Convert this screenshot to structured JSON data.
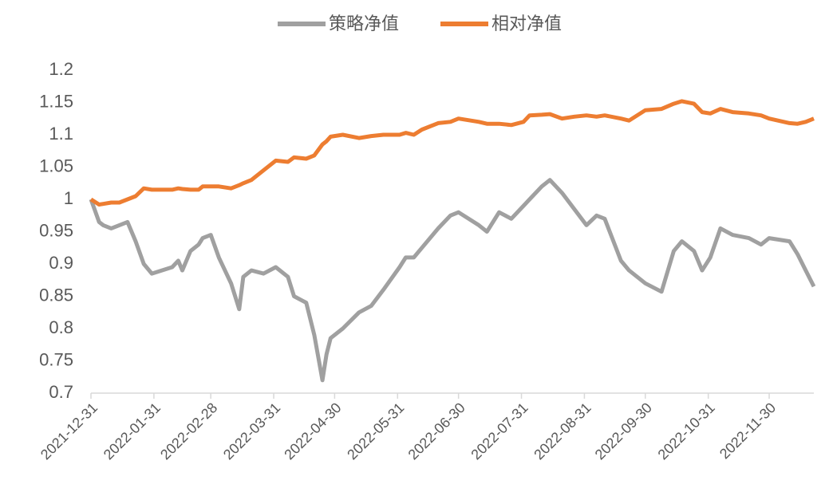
{
  "chart_data": {
    "type": "line",
    "x": [
      "2021-12-31",
      "2022-01-04",
      "2022-01-06",
      "2022-01-10",
      "2022-01-14",
      "2022-01-18",
      "2022-01-22",
      "2022-01-26",
      "2022-01-30",
      "2022-02-09",
      "2022-02-12",
      "2022-02-14",
      "2022-02-18",
      "2022-02-22",
      "2022-02-24",
      "2022-02-28",
      "2022-03-04",
      "2022-03-10",
      "2022-03-14",
      "2022-03-16",
      "2022-03-20",
      "2022-03-26",
      "2022-04-01",
      "2022-04-07",
      "2022-04-10",
      "2022-04-16",
      "2022-04-20",
      "2022-04-24",
      "2022-04-26",
      "2022-04-28",
      "2022-05-04",
      "2022-05-12",
      "2022-05-18",
      "2022-05-24",
      "2022-06-01",
      "2022-06-04",
      "2022-06-08",
      "2022-06-12",
      "2022-06-20",
      "2022-06-26",
      "2022-06-30",
      "2022-07-10",
      "2022-07-14",
      "2022-07-20",
      "2022-07-26",
      "2022-08-01",
      "2022-08-04",
      "2022-08-10",
      "2022-08-14",
      "2022-08-20",
      "2022-08-26",
      "2022-09-01",
      "2022-09-06",
      "2022-09-10",
      "2022-09-18",
      "2022-09-22",
      "2022-09-26",
      "2022-09-30",
      "2022-10-08",
      "2022-10-14",
      "2022-10-18",
      "2022-10-24",
      "2022-10-28",
      "2022-11-01",
      "2022-11-06",
      "2022-11-12",
      "2022-11-20",
      "2022-11-26",
      "2022-11-30",
      "2022-12-10",
      "2022-12-14",
      "2022-12-18",
      "2022-12-22"
    ],
    "series": [
      {
        "name": "策略净值",
        "color": "#a0a0a0",
        "values": [
          1.0,
          0.965,
          0.96,
          0.955,
          0.96,
          0.965,
          0.935,
          0.9,
          0.885,
          0.895,
          0.905,
          0.89,
          0.92,
          0.93,
          0.94,
          0.945,
          0.91,
          0.87,
          0.83,
          0.88,
          0.89,
          0.885,
          0.895,
          0.88,
          0.85,
          0.84,
          0.79,
          0.72,
          0.76,
          0.785,
          0.8,
          0.825,
          0.835,
          0.86,
          0.895,
          0.91,
          0.91,
          0.925,
          0.955,
          0.975,
          0.98,
          0.96,
          0.95,
          0.98,
          0.97,
          0.99,
          1.0,
          1.02,
          1.03,
          1.01,
          0.985,
          0.96,
          0.975,
          0.97,
          0.905,
          0.89,
          0.88,
          0.87,
          0.857,
          0.92,
          0.935,
          0.92,
          0.89,
          0.91,
          0.955,
          0.945,
          0.94,
          0.93,
          0.94,
          0.935,
          0.915,
          0.89,
          0.865
        ]
      },
      {
        "name": "相对净值",
        "color": "#ed7d31",
        "values": [
          1.0,
          0.992,
          0.993,
          0.995,
          0.995,
          1.0,
          1.005,
          1.017,
          1.015,
          1.015,
          1.017,
          1.016,
          1.015,
          1.015,
          1.02,
          1.02,
          1.02,
          1.017,
          1.022,
          1.025,
          1.03,
          1.045,
          1.06,
          1.058,
          1.065,
          1.063,
          1.068,
          1.085,
          1.09,
          1.097,
          1.1,
          1.095,
          1.098,
          1.1,
          1.1,
          1.103,
          1.1,
          1.108,
          1.118,
          1.12,
          1.125,
          1.12,
          1.117,
          1.117,
          1.115,
          1.12,
          1.13,
          1.131,
          1.132,
          1.125,
          1.128,
          1.13,
          1.128,
          1.13,
          1.125,
          1.122,
          1.13,
          1.138,
          1.14,
          1.148,
          1.152,
          1.148,
          1.135,
          1.133,
          1.14,
          1.135,
          1.133,
          1.13,
          1.125,
          1.118,
          1.117,
          1.12,
          1.125
        ]
      }
    ],
    "xlim": [
      "2021-12-31",
      "2022-12-22"
    ],
    "xticks": [
      "2021-12-31",
      "2022-01-31",
      "2022-02-28",
      "2022-03-31",
      "2022-04-30",
      "2022-05-31",
      "2022-06-30",
      "2022-07-31",
      "2022-08-31",
      "2022-09-30",
      "2022-10-31",
      "2022-11-30"
    ],
    "ylim": [
      0.7,
      1.2
    ],
    "yticks": [
      0.7,
      0.75,
      0.8,
      0.85,
      0.9,
      0.95,
      1,
      1.05,
      1.1,
      1.15,
      1.2
    ],
    "legend": "top",
    "grid": false
  }
}
